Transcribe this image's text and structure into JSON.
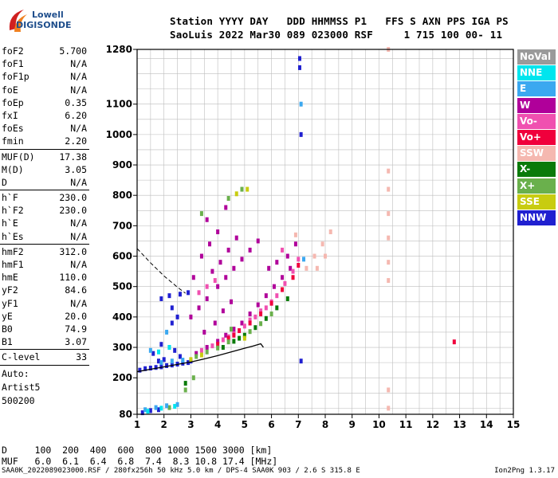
{
  "logo": {
    "line1": "Lowell",
    "line2": "DIGISONDE"
  },
  "header": {
    "row1": "Station YYYY DAY   DDD HHMMSS P1   FFS S AXN PPS IGA PS",
    "row2": "SaoLuis 2022 Mar30 089 023000 RSF     1 715 100 00- 11"
  },
  "params": {
    "group1": [
      {
        "k": "foF2",
        "v": "5.700"
      },
      {
        "k": "foF1",
        "v": "N/A"
      },
      {
        "k": "foF1p",
        "v": "N/A"
      },
      {
        "k": "foE",
        "v": "N/A"
      },
      {
        "k": "foEp",
        "v": "0.35"
      },
      {
        "k": "fxI",
        "v": "6.20"
      },
      {
        "k": "foEs",
        "v": "N/A"
      },
      {
        "k": "fmin",
        "v": "2.20"
      }
    ],
    "group2": [
      {
        "k": "MUF(D)",
        "v": "17.38"
      },
      {
        "k": "M(D)",
        "v": "3.05"
      },
      {
        "k": "D",
        "v": "N/A"
      }
    ],
    "group3": [
      {
        "k": "h`F",
        "v": "230.0"
      },
      {
        "k": "h`F2",
        "v": "230.0"
      },
      {
        "k": "h`E",
        "v": "N/A"
      },
      {
        "k": "h`Es",
        "v": "N/A"
      }
    ],
    "group4": [
      {
        "k": "hmF2",
        "v": "312.0"
      },
      {
        "k": "hmF1",
        "v": "N/A"
      },
      {
        "k": "hmE",
        "v": "110.0"
      },
      {
        "k": "yF2",
        "v": "84.6"
      },
      {
        "k": "yF1",
        "v": "N/A"
      },
      {
        "k": "yE",
        "v": "20.0"
      },
      {
        "k": "B0",
        "v": "74.9"
      },
      {
        "k": "B1",
        "v": "3.07"
      }
    ],
    "clevel": {
      "k": "C-level",
      "v": "33"
    },
    "auto": [
      "Auto:",
      "Artist5",
      "500200"
    ]
  },
  "legend": [
    {
      "label": "NoVal",
      "color": "#9a9a9a"
    },
    {
      "label": "NNE",
      "color": "#00e5ee"
    },
    {
      "label": "E",
      "color": "#3ba8f0"
    },
    {
      "label": "W",
      "color": "#b0009a"
    },
    {
      "label": "Vo-",
      "color": "#f050b0"
    },
    {
      "label": "Vo+",
      "color": "#f0003c"
    },
    {
      "label": "SSW",
      "color": "#f5b8b0"
    },
    {
      "label": "X-",
      "color": "#0a7a0a"
    },
    {
      "label": "X+",
      "color": "#6ab04c"
    },
    {
      "label": "SSE",
      "color": "#c8cc10"
    },
    {
      "label": "NNW",
      "color": "#2020d0"
    }
  ],
  "chart_data": {
    "type": "scatter",
    "x_ticks": [
      1,
      2,
      3,
      4,
      5,
      6,
      7,
      8,
      9,
      10,
      11,
      12,
      13,
      14,
      15
    ],
    "y_ticks": [
      80,
      200,
      300,
      400,
      500,
      600,
      700,
      800,
      900,
      1000,
      1100,
      1280
    ],
    "xlim": [
      1,
      15
    ],
    "ylim": [
      80,
      1280
    ],
    "grid": true,
    "trace_curve": [
      [
        1.0,
        220
      ],
      [
        1.5,
        228
      ],
      [
        2.0,
        236
      ],
      [
        2.5,
        244
      ],
      [
        3.0,
        252
      ],
      [
        3.5,
        262
      ],
      [
        4.0,
        273
      ],
      [
        4.5,
        285
      ],
      [
        5.0,
        297
      ],
      [
        5.3,
        304
      ],
      [
        5.6,
        312
      ],
      [
        5.7,
        300
      ]
    ],
    "dashed_curve": [
      [
        1.0,
        625
      ],
      [
        1.5,
        578
      ],
      [
        2.0,
        535
      ],
      [
        2.5,
        498
      ],
      [
        2.8,
        478
      ]
    ],
    "series": [
      {
        "color": "#2020d0",
        "points": [
          [
            1.1,
            225
          ],
          [
            1.3,
            230
          ],
          [
            1.5,
            232
          ],
          [
            1.7,
            234
          ],
          [
            1.9,
            236
          ],
          [
            2.1,
            240
          ],
          [
            2.3,
            242
          ],
          [
            2.5,
            245
          ],
          [
            2.7,
            248
          ],
          [
            2.9,
            250
          ],
          [
            1.6,
            280
          ],
          [
            1.9,
            310
          ],
          [
            2.2,
            300
          ],
          [
            2.4,
            290
          ],
          [
            2.6,
            270
          ],
          [
            2.0,
            260
          ],
          [
            1.8,
            255
          ],
          [
            3.0,
            255
          ],
          [
            1.9,
            460
          ],
          [
            2.2,
            470
          ],
          [
            2.6,
            475
          ],
          [
            2.9,
            480
          ],
          [
            7.05,
            1250
          ],
          [
            7.05,
            1220
          ],
          [
            7.1,
            1000
          ],
          [
            7.1,
            255
          ],
          [
            2.3,
            380
          ],
          [
            2.5,
            400
          ],
          [
            2.3,
            430
          ],
          [
            1.2,
            85
          ],
          [
            1.5,
            92
          ],
          [
            1.8,
            95
          ]
        ]
      },
      {
        "color": "#b0009a",
        "points": [
          [
            3.2,
            280
          ],
          [
            3.6,
            300
          ],
          [
            4.0,
            320
          ],
          [
            4.3,
            340
          ],
          [
            4.6,
            360
          ],
          [
            4.9,
            380
          ],
          [
            5.2,
            410
          ],
          [
            5.5,
            440
          ],
          [
            5.8,
            470
          ],
          [
            6.1,
            500
          ],
          [
            6.4,
            530
          ],
          [
            6.7,
            560
          ],
          [
            3.5,
            350
          ],
          [
            3.9,
            380
          ],
          [
            4.2,
            420
          ],
          [
            4.5,
            450
          ],
          [
            3.0,
            400
          ],
          [
            3.3,
            430
          ],
          [
            3.6,
            460
          ],
          [
            4.0,
            500
          ],
          [
            4.3,
            530
          ],
          [
            4.6,
            560
          ],
          [
            4.9,
            590
          ],
          [
            5.2,
            620
          ],
          [
            5.5,
            650
          ],
          [
            3.8,
            550
          ],
          [
            4.1,
            580
          ],
          [
            4.4,
            620
          ],
          [
            4.7,
            660
          ],
          [
            3.4,
            600
          ],
          [
            3.7,
            640
          ],
          [
            4.0,
            680
          ],
          [
            3.1,
            530
          ],
          [
            6.6,
            600
          ],
          [
            6.9,
            640
          ],
          [
            6.2,
            580
          ],
          [
            5.9,
            560
          ],
          [
            3.6,
            720
          ],
          [
            4.3,
            760
          ]
        ]
      },
      {
        "color": "#f050b0",
        "points": [
          [
            3.4,
            290
          ],
          [
            3.8,
            305
          ],
          [
            4.2,
            325
          ],
          [
            4.6,
            345
          ],
          [
            5.0,
            370
          ],
          [
            5.4,
            400
          ],
          [
            5.8,
            430
          ],
          [
            6.2,
            470
          ],
          [
            6.5,
            510
          ],
          [
            6.8,
            550
          ],
          [
            7.0,
            590
          ],
          [
            4.4,
            335
          ],
          [
            5.6,
            420
          ],
          [
            6.0,
            450
          ],
          [
            5.2,
            390
          ],
          [
            3.3,
            480
          ],
          [
            3.6,
            500
          ],
          [
            3.9,
            520
          ],
          [
            6.4,
            620
          ]
        ]
      },
      {
        "color": "#f0003c",
        "points": [
          [
            4.0,
            310
          ],
          [
            4.4,
            330
          ],
          [
            4.8,
            355
          ],
          [
            5.2,
            380
          ],
          [
            5.6,
            410
          ],
          [
            6.0,
            445
          ],
          [
            6.4,
            490
          ],
          [
            6.8,
            530
          ],
          [
            7.0,
            570
          ],
          [
            4.6,
            340
          ],
          [
            12.8,
            318
          ]
        ]
      },
      {
        "color": "#f5b8b0",
        "points": [
          [
            7.3,
            560
          ],
          [
            7.6,
            600
          ],
          [
            7.9,
            640
          ],
          [
            8.2,
            680
          ],
          [
            7.7,
            560
          ],
          [
            8.0,
            600
          ],
          [
            6.9,
            670
          ],
          [
            10.35,
            1280
          ],
          [
            10.35,
            880
          ],
          [
            10.35,
            820
          ],
          [
            10.35,
            740
          ],
          [
            10.35,
            660
          ],
          [
            10.35,
            580
          ],
          [
            10.35,
            520
          ],
          [
            10.35,
            160
          ],
          [
            10.35,
            100
          ]
        ]
      },
      {
        "color": "#0a7a0a",
        "points": [
          [
            4.2,
            300
          ],
          [
            4.6,
            320
          ],
          [
            5.0,
            340
          ],
          [
            5.4,
            365
          ],
          [
            5.8,
            395
          ],
          [
            6.2,
            430
          ],
          [
            6.6,
            460
          ],
          [
            4.8,
            330
          ],
          [
            2.8,
            182
          ]
        ]
      },
      {
        "color": "#6ab04c",
        "points": [
          [
            3.6,
            285
          ],
          [
            4.0,
            298
          ],
          [
            4.4,
            318
          ],
          [
            5.2,
            352
          ],
          [
            5.6,
            378
          ],
          [
            6.0,
            410
          ],
          [
            4.5,
            360
          ],
          [
            3.2,
            270
          ],
          [
            3.4,
            740
          ],
          [
            4.4,
            790
          ],
          [
            4.9,
            820
          ],
          [
            2.2,
            102
          ],
          [
            2.8,
            160
          ],
          [
            3.1,
            200
          ]
        ]
      },
      {
        "color": "#c8cc10",
        "points": [
          [
            4.7,
            805
          ],
          [
            5.1,
            820
          ],
          [
            3.0,
            260
          ],
          [
            3.4,
            275
          ],
          [
            5.0,
            330
          ]
        ]
      },
      {
        "color": "#3ba8f0",
        "points": [
          [
            1.3,
            95
          ],
          [
            1.7,
            102
          ],
          [
            2.1,
            108
          ],
          [
            2.5,
            112
          ],
          [
            1.9,
            250
          ],
          [
            2.3,
            255
          ],
          [
            2.7,
            258
          ],
          [
            1.5,
            290
          ],
          [
            2.1,
            350
          ],
          [
            7.2,
            590
          ],
          [
            7.1,
            1100
          ]
        ]
      },
      {
        "color": "#00e5ee",
        "points": [
          [
            1.4,
            90
          ],
          [
            1.9,
            100
          ],
          [
            2.4,
            106
          ],
          [
            2.2,
            300
          ],
          [
            1.8,
            285
          ]
        ]
      }
    ]
  },
  "dtable": {
    "row1": "D     100  200  400  600  800 1000 1500 3000 [km]",
    "row2": "MUF   6.0  6.1  6.4  6.8  7.4  8.3 10.8 17.4 [MHz]"
  },
  "footer": {
    "text": "SAA0K_2022089023000.RSF / 280fx256h 50 kHz 5.0 km / DPS-4 SAA0K 903 / 2.6 S 315.8 E",
    "version": "Ion2Png 1.3.17"
  }
}
